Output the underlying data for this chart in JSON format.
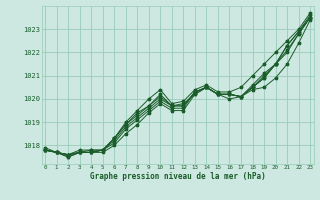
{
  "title": "Graphe pression niveau de la mer (hPa)",
  "xlabel_ticks": [
    0,
    1,
    2,
    3,
    4,
    5,
    6,
    7,
    8,
    9,
    10,
    11,
    12,
    13,
    14,
    15,
    16,
    17,
    18,
    19,
    20,
    21,
    22,
    23
  ],
  "yticks": [
    1018,
    1019,
    1020,
    1021,
    1022,
    1023
  ],
  "ylim": [
    1017.2,
    1024.0
  ],
  "xlim": [
    -0.3,
    23.3
  ],
  "background_color": "#cce8e0",
  "grid_color": "#99ccbb",
  "line_color": "#1a5c2a",
  "lines": [
    [
      1017.8,
      1017.7,
      1017.6,
      1017.7,
      1017.7,
      1017.7,
      1018.0,
      1018.5,
      1018.9,
      1019.4,
      1019.8,
      1019.5,
      1019.5,
      1020.2,
      1020.5,
      1020.2,
      1020.2,
      1020.1,
      1020.4,
      1020.5,
      1020.9,
      1021.5,
      1022.4,
      1023.4
    ],
    [
      1017.8,
      1017.7,
      1017.6,
      1017.7,
      1017.7,
      1017.8,
      1018.1,
      1018.7,
      1019.1,
      1019.5,
      1019.9,
      1019.6,
      1019.6,
      1020.3,
      1020.5,
      1020.2,
      1020.2,
      1020.1,
      1020.5,
      1020.9,
      1021.5,
      1022.0,
      1022.8,
      1023.5
    ],
    [
      1017.9,
      1017.7,
      1017.6,
      1017.7,
      1017.8,
      1017.8,
      1018.2,
      1018.8,
      1019.2,
      1019.6,
      1020.0,
      1019.7,
      1019.7,
      1020.3,
      1020.5,
      1020.2,
      1020.2,
      1020.1,
      1020.5,
      1020.9,
      1021.5,
      1022.1,
      1022.8,
      1023.5
    ],
    [
      1017.8,
      1017.7,
      1017.6,
      1017.8,
      1017.8,
      1017.8,
      1018.3,
      1018.9,
      1019.3,
      1019.7,
      1020.1,
      1019.7,
      1019.7,
      1020.3,
      1020.5,
      1020.2,
      1020.2,
      1020.1,
      1020.5,
      1021.0,
      1021.5,
      1022.3,
      1022.9,
      1023.5
    ],
    [
      1017.8,
      1017.7,
      1017.5,
      1017.7,
      1017.7,
      1017.8,
      1018.3,
      1018.9,
      1019.4,
      1019.7,
      1020.2,
      1019.7,
      1019.8,
      1020.2,
      1020.5,
      1020.2,
      1020.0,
      1020.1,
      1020.6,
      1021.1,
      1021.5,
      1022.3,
      1022.9,
      1023.6
    ]
  ],
  "line_top": [
    1017.8,
    1017.7,
    1017.5,
    1017.7,
    1017.7,
    1017.8,
    1018.3,
    1019.0,
    1019.5,
    1020.0,
    1020.4,
    1019.8,
    1019.9,
    1020.4,
    1020.6,
    1020.3,
    1020.3,
    1020.5,
    1021.0,
    1021.5,
    1022.0,
    1022.5,
    1023.0,
    1023.7
  ]
}
